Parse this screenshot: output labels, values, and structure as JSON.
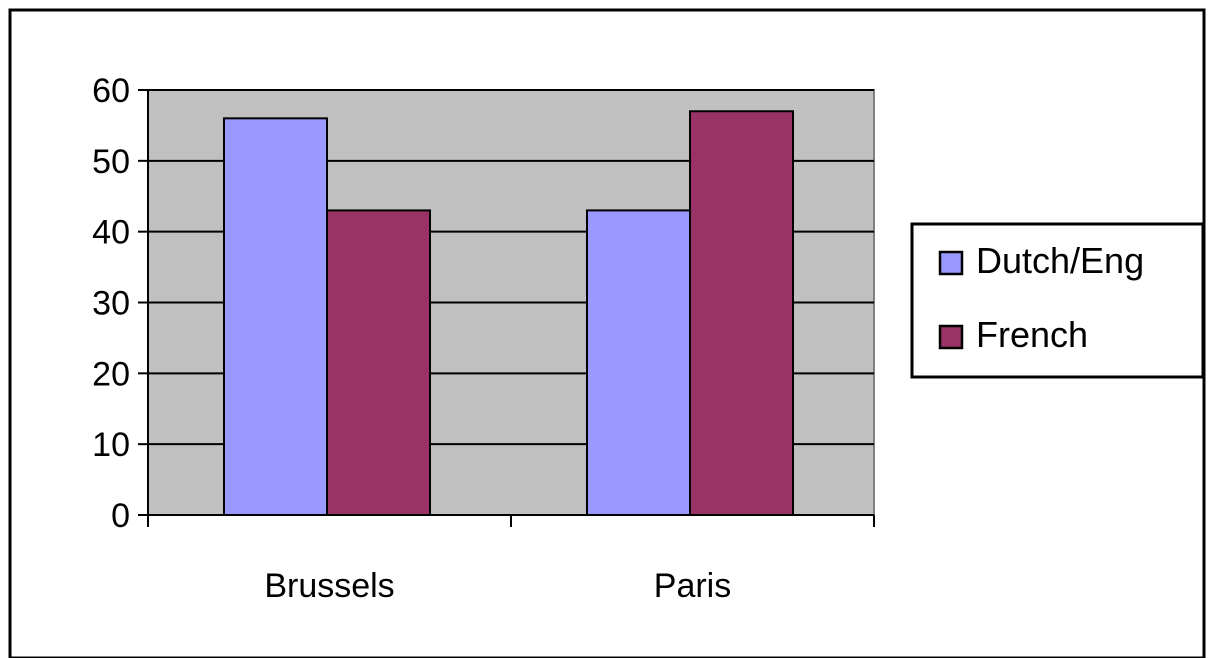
{
  "chart_data": {
    "type": "bar",
    "categories": [
      "Brussels",
      "Paris"
    ],
    "series": [
      {
        "name": "Dutch/Eng",
        "values": [
          56,
          43
        ],
        "color": "#9999ff"
      },
      {
        "name": "French",
        "values": [
          43,
          57
        ],
        "color": "#993366"
      }
    ],
    "ylim": [
      0,
      60
    ],
    "yticks": [
      0,
      10,
      20,
      30,
      40,
      50,
      60
    ],
    "grid": true,
    "legend_position": "right",
    "plot_background": "#c0c0c0",
    "title": "",
    "xlabel": "",
    "ylabel": ""
  }
}
